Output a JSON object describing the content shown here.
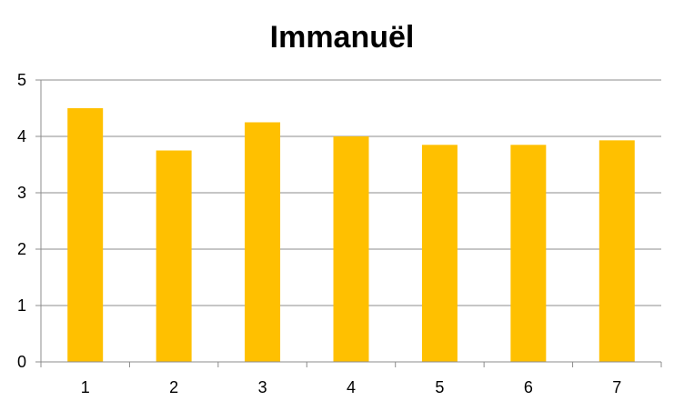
{
  "chart_data": {
    "type": "bar",
    "title": "Immanuël",
    "categories": [
      "1",
      "2",
      "3",
      "4",
      "5",
      "6",
      "7"
    ],
    "values": [
      4.5,
      3.75,
      4.25,
      4.0,
      3.85,
      3.85,
      3.93
    ],
    "xlabel": "",
    "ylabel": "",
    "ylim": [
      0,
      5
    ],
    "yticks": [
      "0",
      "1",
      "2",
      "3",
      "4",
      "5"
    ],
    "grid": true,
    "legend": "none",
    "colors": {
      "bar": "#FFC000",
      "grid": "#8C8C8C",
      "axis": "#8C8C8C",
      "text": "#000000"
    }
  }
}
